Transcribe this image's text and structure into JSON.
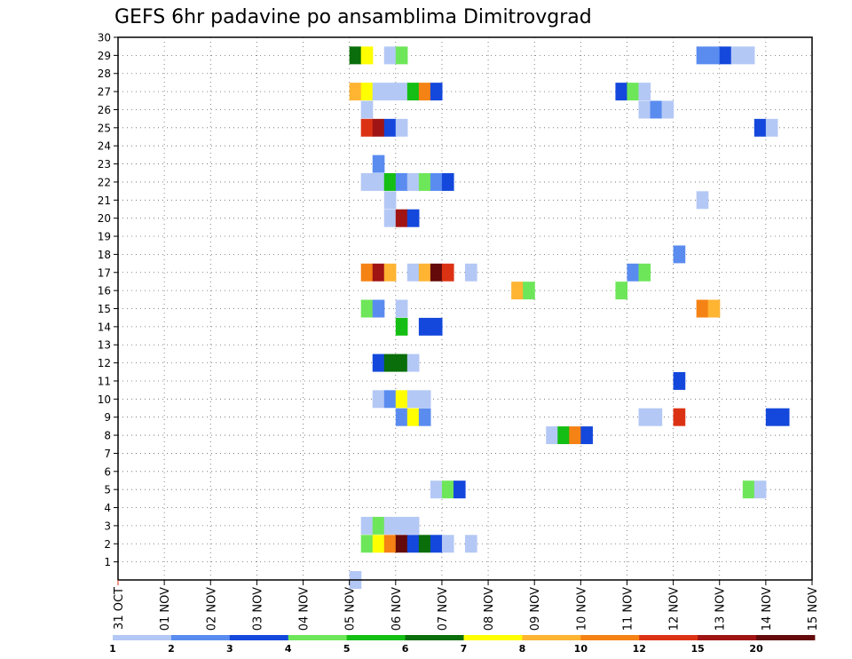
{
  "chart_data": {
    "type": "heatmap",
    "title": "GEFS 6hr padavine po ansamblima Dimitrovgrad",
    "xlabel": "",
    "ylabel": "",
    "x_tick_labels": [
      "31 OCT",
      "01 NOV",
      "02 NOV",
      "03 NOV",
      "04 NOV",
      "05 NOV",
      "06 NOV",
      "07 NOV",
      "08 NOV",
      "09 NOV",
      "10 NOV",
      "11 NOV",
      "12 NOV",
      "13 NOV",
      "14 NOV",
      "15 NOV"
    ],
    "xlim_days": [
      0,
      15
    ],
    "y_tick_labels": [
      "1",
      "2",
      "3",
      "4",
      "5",
      "6",
      "7",
      "8",
      "9",
      "10",
      "11",
      "12",
      "13",
      "14",
      "15",
      "16",
      "17",
      "18",
      "19",
      "20",
      "21",
      "22",
      "23",
      "24",
      "25",
      "26",
      "27",
      "28",
      "29",
      "30"
    ],
    "ylim": [
      0,
      30
    ],
    "time_step_hours": 6,
    "grid": true,
    "colorbar": {
      "tick_labels": [
        "1",
        "2",
        "3",
        "4",
        "5",
        "6",
        "7",
        "8",
        "10",
        "12",
        "15",
        "20"
      ],
      "colors": [
        "#b4c8f5",
        "#5a8cf0",
        "#1448dc",
        "#6ee65a",
        "#14be14",
        "#0a6e0a",
        "#ffff00",
        "#ffb432",
        "#f58214",
        "#dc3214",
        "#a01414",
        "#640a0a"
      ]
    },
    "cell_value_meaning": "6-hour precipitation class (index into colorbar.colors)",
    "cells": [
      {
        "member": 0,
        "day": 5.0,
        "class": 0
      },
      {
        "member": 2,
        "day": 5.25,
        "class": 3
      },
      {
        "member": 2,
        "day": 5.5,
        "class": 6
      },
      {
        "member": 2,
        "day": 5.75,
        "class": 8
      },
      {
        "member": 2,
        "day": 6.0,
        "class": 11
      },
      {
        "member": 2,
        "day": 6.25,
        "class": 2
      },
      {
        "member": 2,
        "day": 6.5,
        "class": 5
      },
      {
        "member": 2,
        "day": 6.75,
        "class": 2
      },
      {
        "member": 2,
        "day": 7.0,
        "class": 0
      },
      {
        "member": 2,
        "day": 7.5,
        "class": 0
      },
      {
        "member": 3,
        "day": 5.25,
        "class": 0
      },
      {
        "member": 3,
        "day": 5.5,
        "class": 3
      },
      {
        "member": 3,
        "day": 5.75,
        "class": 0
      },
      {
        "member": 3,
        "day": 6.0,
        "class": 0
      },
      {
        "member": 3,
        "day": 6.25,
        "class": 0
      },
      {
        "member": 5,
        "day": 6.75,
        "class": 0
      },
      {
        "member": 5,
        "day": 7.0,
        "class": 3
      },
      {
        "member": 5,
        "day": 7.25,
        "class": 2
      },
      {
        "member": 5,
        "day": 13.5,
        "class": 3
      },
      {
        "member": 5,
        "day": 13.75,
        "class": 0
      },
      {
        "member": 8,
        "day": 9.25,
        "class": 0
      },
      {
        "member": 8,
        "day": 9.5,
        "class": 4
      },
      {
        "member": 8,
        "day": 9.75,
        "class": 8
      },
      {
        "member": 8,
        "day": 10.0,
        "class": 2
      },
      {
        "member": 9,
        "day": 6.0,
        "class": 1
      },
      {
        "member": 9,
        "day": 6.25,
        "class": 6
      },
      {
        "member": 9,
        "day": 6.5,
        "class": 1
      },
      {
        "member": 9,
        "day": 11.25,
        "class": 0
      },
      {
        "member": 9,
        "day": 11.5,
        "class": 0
      },
      {
        "member": 9,
        "day": 12.0,
        "class": 9
      },
      {
        "member": 9,
        "day": 14.0,
        "class": 2
      },
      {
        "member": 9,
        "day": 14.25,
        "class": 2
      },
      {
        "member": 10,
        "day": 5.5,
        "class": 0
      },
      {
        "member": 10,
        "day": 5.75,
        "class": 1
      },
      {
        "member": 10,
        "day": 6.0,
        "class": 6
      },
      {
        "member": 10,
        "day": 6.25,
        "class": 0
      },
      {
        "member": 10,
        "day": 6.5,
        "class": 0
      },
      {
        "member": 11,
        "day": 12.0,
        "class": 2
      },
      {
        "member": 12,
        "day": 5.5,
        "class": 2
      },
      {
        "member": 12,
        "day": 5.75,
        "class": 5
      },
      {
        "member": 12,
        "day": 6.0,
        "class": 5
      },
      {
        "member": 12,
        "day": 6.25,
        "class": 0
      },
      {
        "member": 14,
        "day": 6.0,
        "class": 4
      },
      {
        "member": 14,
        "day": 6.5,
        "class": 2
      },
      {
        "member": 14,
        "day": 6.75,
        "class": 2
      },
      {
        "member": 15,
        "day": 5.25,
        "class": 3
      },
      {
        "member": 15,
        "day": 5.5,
        "class": 1
      },
      {
        "member": 15,
        "day": 6.0,
        "class": 0
      },
      {
        "member": 15,
        "day": 12.5,
        "class": 8
      },
      {
        "member": 15,
        "day": 12.75,
        "class": 7
      },
      {
        "member": 16,
        "day": 8.5,
        "class": 7
      },
      {
        "member": 16,
        "day": 8.75,
        "class": 3
      },
      {
        "member": 16,
        "day": 10.75,
        "class": 3
      },
      {
        "member": 17,
        "day": 5.25,
        "class": 8
      },
      {
        "member": 17,
        "day": 5.5,
        "class": 10
      },
      {
        "member": 17,
        "day": 5.75,
        "class": 7
      },
      {
        "member": 17,
        "day": 6.25,
        "class": 0
      },
      {
        "member": 17,
        "day": 6.5,
        "class": 7
      },
      {
        "member": 17,
        "day": 6.75,
        "class": 11
      },
      {
        "member": 17,
        "day": 7.0,
        "class": 9
      },
      {
        "member": 17,
        "day": 7.5,
        "class": 0
      },
      {
        "member": 17,
        "day": 11.0,
        "class": 1
      },
      {
        "member": 17,
        "day": 11.25,
        "class": 3
      },
      {
        "member": 18,
        "day": 12.0,
        "class": 1
      },
      {
        "member": 20,
        "day": 5.75,
        "class": 0
      },
      {
        "member": 20,
        "day": 6.0,
        "class": 10
      },
      {
        "member": 20,
        "day": 6.25,
        "class": 2
      },
      {
        "member": 21,
        "day": 5.75,
        "class": 0
      },
      {
        "member": 21,
        "day": 12.5,
        "class": 0
      },
      {
        "member": 22,
        "day": 5.25,
        "class": 0
      },
      {
        "member": 22,
        "day": 5.5,
        "class": 0
      },
      {
        "member": 22,
        "day": 5.75,
        "class": 4
      },
      {
        "member": 22,
        "day": 6.0,
        "class": 1
      },
      {
        "member": 22,
        "day": 6.25,
        "class": 0
      },
      {
        "member": 22,
        "day": 6.5,
        "class": 3
      },
      {
        "member": 22,
        "day": 6.75,
        "class": 1
      },
      {
        "member": 22,
        "day": 7.0,
        "class": 2
      },
      {
        "member": 23,
        "day": 5.5,
        "class": 1
      },
      {
        "member": 25,
        "day": 5.25,
        "class": 9
      },
      {
        "member": 25,
        "day": 5.5,
        "class": 10
      },
      {
        "member": 25,
        "day": 5.75,
        "class": 2
      },
      {
        "member": 25,
        "day": 6.0,
        "class": 0
      },
      {
        "member": 25,
        "day": 13.75,
        "class": 2
      },
      {
        "member": 25,
        "day": 14.0,
        "class": 0
      },
      {
        "member": 26,
        "day": 5.25,
        "class": 0
      },
      {
        "member": 26,
        "day": 11.25,
        "class": 0
      },
      {
        "member": 26,
        "day": 11.5,
        "class": 1
      },
      {
        "member": 26,
        "day": 11.75,
        "class": 0
      },
      {
        "member": 27,
        "day": 5.0,
        "class": 7
      },
      {
        "member": 27,
        "day": 5.25,
        "class": 6
      },
      {
        "member": 27,
        "day": 5.5,
        "class": 0
      },
      {
        "member": 27,
        "day": 5.75,
        "class": 0
      },
      {
        "member": 27,
        "day": 6.0,
        "class": 0
      },
      {
        "member": 27,
        "day": 6.25,
        "class": 4
      },
      {
        "member": 27,
        "day": 6.5,
        "class": 8
      },
      {
        "member": 27,
        "day": 6.75,
        "class": 2
      },
      {
        "member": 27,
        "day": 10.75,
        "class": 2
      },
      {
        "member": 27,
        "day": 11.0,
        "class": 3
      },
      {
        "member": 27,
        "day": 11.25,
        "class": 0
      },
      {
        "member": 29,
        "day": 5.0,
        "class": 5
      },
      {
        "member": 29,
        "day": 5.25,
        "class": 6
      },
      {
        "member": 29,
        "day": 5.75,
        "class": 0
      },
      {
        "member": 29,
        "day": 6.0,
        "class": 3
      },
      {
        "member": 29,
        "day": 12.5,
        "class": 1
      },
      {
        "member": 29,
        "day": 12.75,
        "class": 1
      },
      {
        "member": 29,
        "day": 13.0,
        "class": 2
      },
      {
        "member": 29,
        "day": 13.25,
        "class": 0
      },
      {
        "member": 29,
        "day": 13.5,
        "class": 0
      }
    ]
  }
}
